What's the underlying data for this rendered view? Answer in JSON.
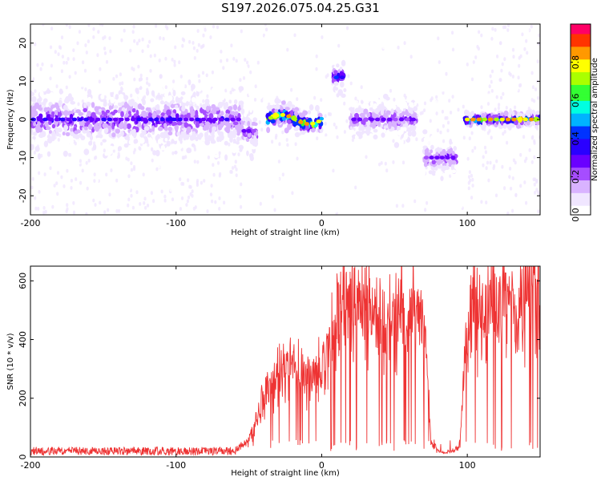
{
  "figure_title": "S197.2026.075.04.25.G31",
  "colors": {
    "snr_line": "#ee3333",
    "colormap": [
      "#ffffff",
      "#f0e6ff",
      "#d9b3ff",
      "#a64dff",
      "#6a00ff",
      "#2a00ff",
      "#0033ff",
      "#00b3ff",
      "#00ffe0",
      "#33ff33",
      "#aaff00",
      "#ffff00",
      "#ff9900",
      "#ff3300",
      "#ff0066"
    ]
  },
  "chart_data": [
    {
      "type": "heatmap",
      "title": "",
      "xlabel": "Height of straight line (km)",
      "ylabel": "Frequency (Hz)",
      "xlim": [
        -200,
        150
      ],
      "ylim": [
        -25,
        25
      ],
      "x_ticks": [
        "-200",
        "-100",
        "0",
        "100"
      ],
      "x_tick_values": [
        -200,
        -100,
        0,
        100
      ],
      "y_ticks": [
        "20",
        "10",
        "0",
        "-10",
        "-20"
      ],
      "y_tick_values": [
        20,
        10,
        0,
        -10,
        -20
      ],
      "colorbar": {
        "label": "Normalized spectral amplitude",
        "range": [
          0,
          1
        ],
        "ticks": [
          "0.0",
          "0.2",
          "0.4",
          "0.6",
          "0.8"
        ],
        "tick_values": [
          0.0,
          0.2,
          0.4,
          0.6,
          0.8
        ]
      },
      "features": [
        {
          "x_range": [
            -200,
            -55
          ],
          "freq_center": 0,
          "freq_spread": 4,
          "peak_amplitude": 0.35
        },
        {
          "x_range": [
            -55,
            -45
          ],
          "freq_center": -3,
          "freq_spread": 3,
          "peak_amplitude": 0.3
        },
        {
          "x_range": [
            -37,
            0
          ],
          "freq_center": 0,
          "freq_spread": 1.5,
          "peak_amplitude": 0.9
        },
        {
          "x_range": [
            8,
            16
          ],
          "freq_center": 11,
          "freq_spread": 2,
          "peak_amplitude": 0.45
        },
        {
          "x_range": [
            20,
            65
          ],
          "freq_center": 0,
          "freq_spread": 2.5,
          "peak_amplitude": 0.3
        },
        {
          "x_range": [
            70,
            92
          ],
          "freq_center": -10,
          "freq_spread": 2.5,
          "peak_amplitude": 0.3
        },
        {
          "x_range": [
            98,
            150
          ],
          "freq_center": 0,
          "freq_spread": 0.8,
          "peak_amplitude": 0.9
        }
      ]
    },
    {
      "type": "line",
      "title": "",
      "xlabel": "Height of straight line (km)",
      "ylabel": "SNR (10 * v/v)",
      "xlim": [
        -200,
        150
      ],
      "ylim": [
        0,
        650
      ],
      "x_ticks": [
        "-200",
        "-100",
        "0",
        "100"
      ],
      "x_tick_values": [
        -200,
        -100,
        0,
        100
      ],
      "y_ticks": [
        "0",
        "200",
        "400",
        "600"
      ],
      "y_tick_values": [
        0,
        200,
        400,
        600
      ],
      "series": [
        {
          "name": "SNR",
          "x": [
            -200,
            -180,
            -160,
            -140,
            -120,
            -100,
            -80,
            -60,
            -50,
            -45,
            -40,
            -30,
            -20,
            -10,
            -5,
            0,
            5,
            10,
            15,
            20,
            25,
            30,
            40,
            50,
            60,
            65,
            70,
            72,
            75,
            80,
            85,
            90,
            95,
            100,
            105,
            110,
            115,
            120,
            125,
            130,
            135,
            140,
            145,
            150
          ],
          "values": [
            20,
            20,
            20,
            20,
            20,
            20,
            20,
            20,
            60,
            120,
            200,
            280,
            330,
            260,
            300,
            280,
            380,
            480,
            560,
            540,
            520,
            510,
            480,
            470,
            480,
            500,
            420,
            350,
            60,
            20,
            15,
            20,
            40,
            480,
            500,
            460,
            520,
            560,
            580,
            500,
            480,
            560,
            600,
            520
          ]
        }
      ]
    }
  ]
}
